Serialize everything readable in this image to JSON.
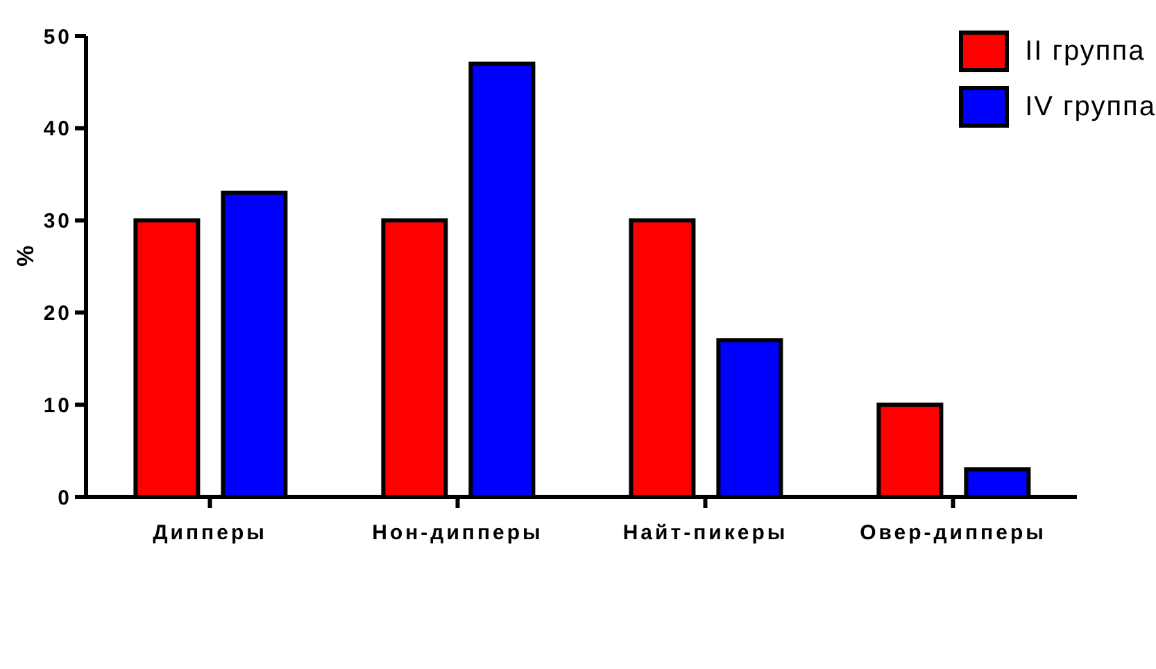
{
  "chart_data": {
    "type": "bar",
    "ylabel": "%",
    "categories": [
      "Дипперы",
      "Нон-дипперы",
      "Найт-пикеры",
      "Овер-дипперы"
    ],
    "series": [
      {
        "name": "II группа",
        "color": "#ff0000",
        "values": [
          30,
          30,
          30,
          10
        ]
      },
      {
        "name": "IV группа",
        "color": "#0000ff",
        "values": [
          33,
          47,
          17,
          3
        ]
      }
    ],
    "ylim": [
      0,
      50
    ],
    "yticks": [
      0,
      10,
      20,
      30,
      40,
      50
    ],
    "grid": false,
    "legend": "top right"
  }
}
